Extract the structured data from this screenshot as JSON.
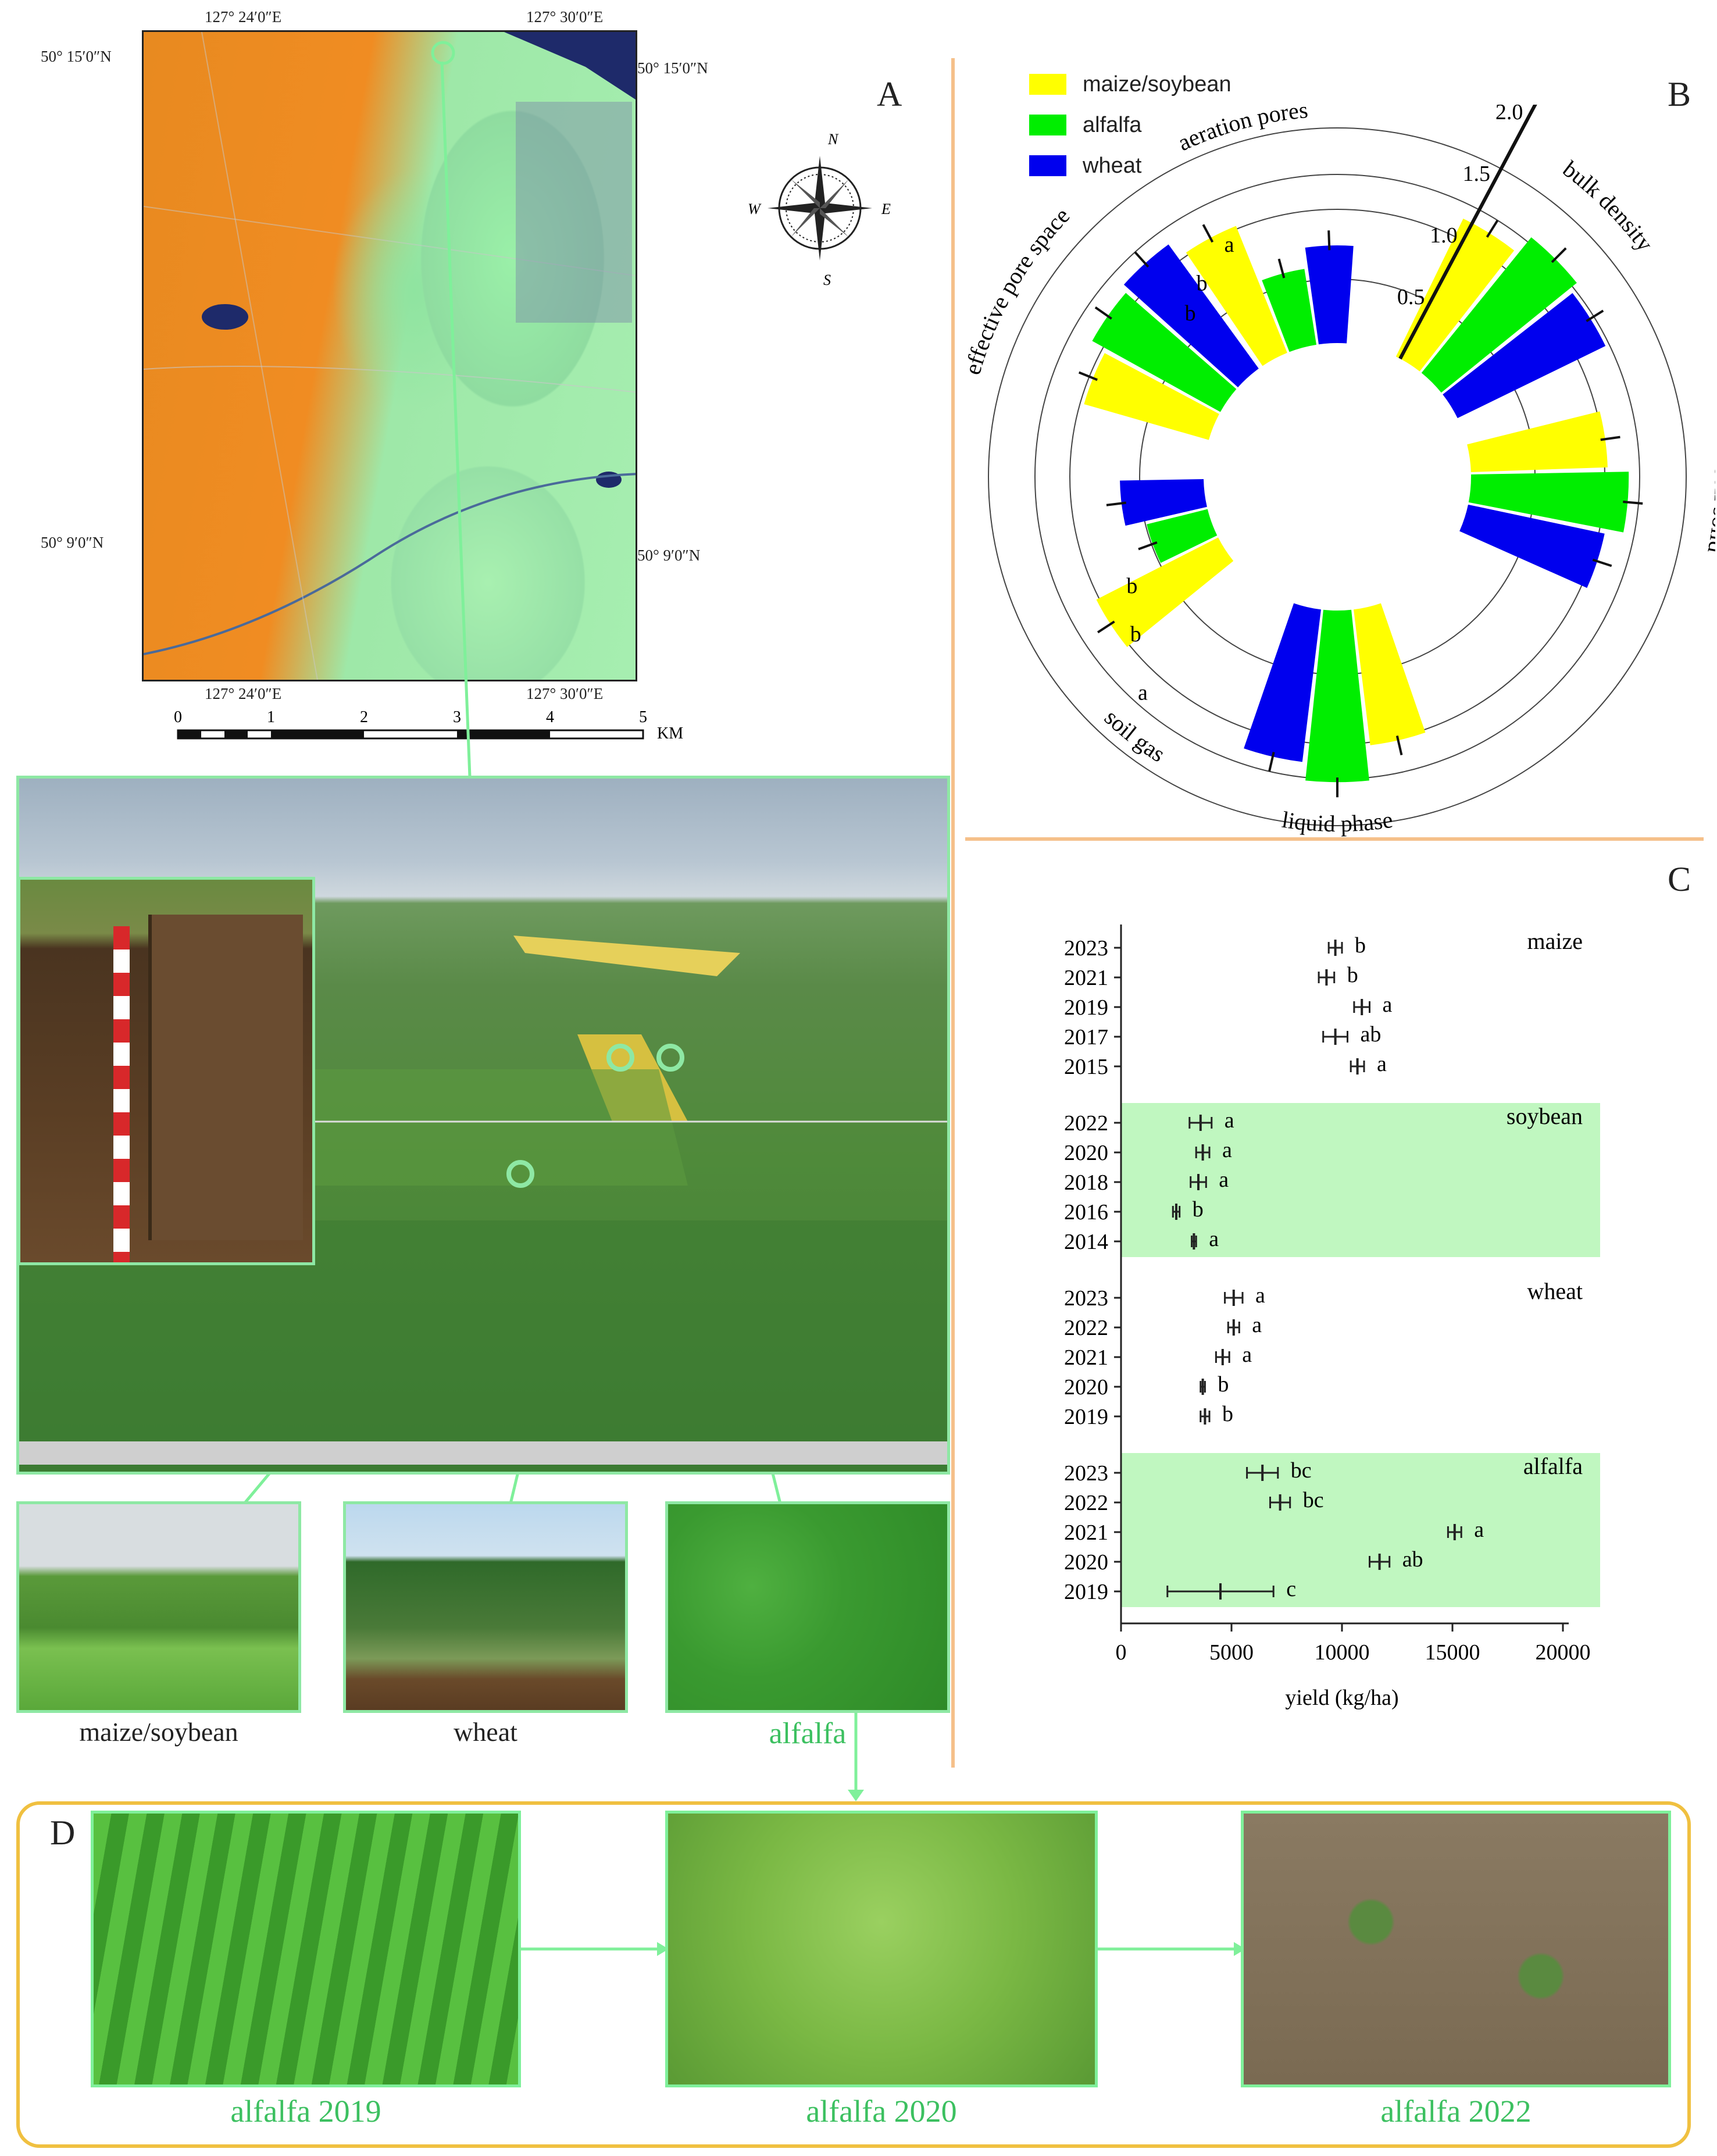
{
  "panels": {
    "a": "A",
    "b": "B",
    "c": "C",
    "d": "D"
  },
  "map": {
    "top_left_lon": "127° 24′0″E",
    "top_right_lon": "127° 30′0″E",
    "bottom_left_lon": "127° 24′0″E",
    "bottom_right_lon": "127° 30′0″E",
    "left_top_lat": "50° 15′0″N",
    "right_top_lat": "50° 15′0″N",
    "left_mid_lat": "50° 9′0″N",
    "right_mid_lat": "50° 9′0″N",
    "scale_ticks": [
      "0",
      "1",
      "2",
      "3",
      "4",
      "5"
    ],
    "scale_unit": "KM",
    "compass": {
      "n": "N",
      "s": "S",
      "e": "E",
      "w": "W"
    }
  },
  "photos": {
    "maize_caption": "maize/soybean",
    "wheat_caption": "wheat",
    "alfalfa_caption": "alfalfa",
    "alfalfa_2019": "alfalfa 2019",
    "alfalfa_2020": "alfalfa 2020",
    "alfalfa_2022": "alfalfa 2022"
  },
  "colors": {
    "maize_soybean": "#ffff00",
    "alfalfa": "#00ee00",
    "wheat": "#0000ee",
    "frame": "#8ee8a4",
    "divider": "#f5c08a",
    "d_frame": "#f0c040",
    "shade": "#c0f7c0"
  },
  "chart_data": [
    {
      "type": "bar",
      "subtype": "radial",
      "legend": [
        "maize/soybean",
        "alfalfa",
        "wheat"
      ],
      "axis_ticks": [
        "0.5",
        "1.0",
        "1.5",
        "2.0"
      ],
      "categories": [
        "bulk density",
        "soil solid",
        "liquid phase",
        "soil gas",
        "effective pore space",
        "aeration pores"
      ],
      "series": [
        {
          "name": "maize/soybean",
          "values": [
            1.1,
            0.98,
            0.98,
            0.98,
            0.93,
            0.98
          ]
        },
        {
          "name": "alfalfa",
          "values": [
            1.25,
            1.13,
            1.23,
            0.45,
            1.05,
            0.55
          ]
        },
        {
          "name": "wheat",
          "values": [
            1.18,
            1.0,
            1.1,
            0.6,
            1.1,
            0.7
          ]
        }
      ],
      "significance_letters": {
        "soil gas": [
          "a",
          "b",
          "b"
        ],
        "aeration pores": [
          "a",
          "b",
          "b"
        ]
      }
    },
    {
      "type": "scatter",
      "subtype": "dot-errorbar",
      "xlabel": "yield (kg/ha)",
      "xlim": [
        0,
        20000
      ],
      "xticks": [
        "0",
        "5000",
        "10000",
        "15000",
        "20000"
      ],
      "groups": [
        {
          "name": "maize",
          "shaded": false,
          "rows": [
            {
              "year": "2023",
              "mean": 9700,
              "err": 300,
              "letter": "b"
            },
            {
              "year": "2021",
              "mean": 9300,
              "err": 350,
              "letter": "b"
            },
            {
              "year": "2019",
              "mean": 10900,
              "err": 350,
              "letter": "a"
            },
            {
              "year": "2017",
              "mean": 9700,
              "err": 550,
              "letter": "ab"
            },
            {
              "year": "2015",
              "mean": 10700,
              "err": 300,
              "letter": "a"
            }
          ]
        },
        {
          "name": "soybean",
          "shaded": true,
          "rows": [
            {
              "year": "2022",
              "mean": 3600,
              "err": 500,
              "letter": "a"
            },
            {
              "year": "2020",
              "mean": 3700,
              "err": 300,
              "letter": "a"
            },
            {
              "year": "2018",
              "mean": 3500,
              "err": 350,
              "letter": "a"
            },
            {
              "year": "2016",
              "mean": 2500,
              "err": 150,
              "letter": "b"
            },
            {
              "year": "2014",
              "mean": 3300,
              "err": 100,
              "letter": "a"
            }
          ]
        },
        {
          "name": "wheat",
          "shaded": false,
          "rows": [
            {
              "year": "2023",
              "mean": 5100,
              "err": 400,
              "letter": "a"
            },
            {
              "year": "2022",
              "mean": 5100,
              "err": 250,
              "letter": "a"
            },
            {
              "year": "2021",
              "mean": 4600,
              "err": 300,
              "letter": "a"
            },
            {
              "year": "2020",
              "mean": 3700,
              "err": 100,
              "letter": "b"
            },
            {
              "year": "2019",
              "mean": 3800,
              "err": 200,
              "letter": "b"
            }
          ]
        },
        {
          "name": "alfalfa",
          "shaded": true,
          "rows": [
            {
              "year": "2023",
              "mean": 6400,
              "err": 700,
              "letter": "bc"
            },
            {
              "year": "2022",
              "mean": 7200,
              "err": 450,
              "letter": "bc"
            },
            {
              "year": "2021",
              "mean": 15100,
              "err": 300,
              "letter": "a"
            },
            {
              "year": "2020",
              "mean": 11700,
              "err": 450,
              "letter": "ab"
            },
            {
              "year": "2019",
              "mean": 4500,
              "err": 2400,
              "letter": "c"
            }
          ]
        }
      ]
    }
  ]
}
